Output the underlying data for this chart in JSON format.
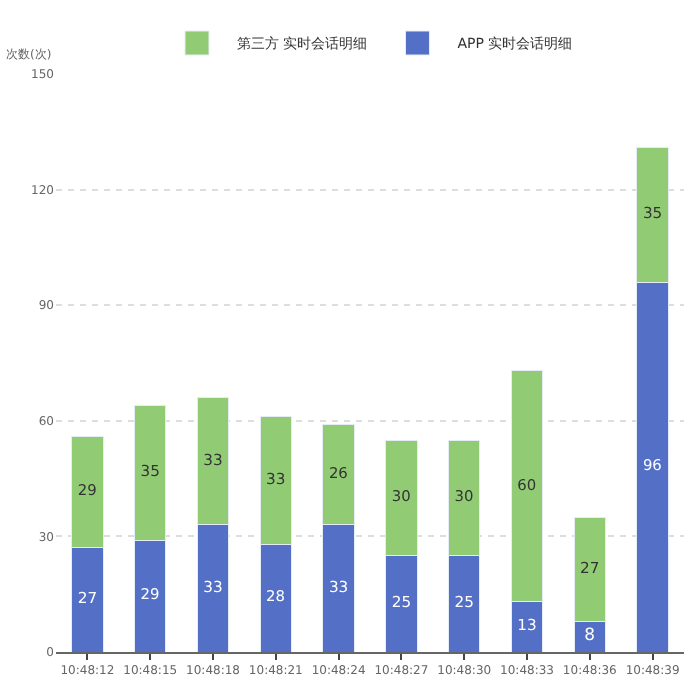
{
  "chart_data": {
    "type": "bar",
    "stacked": true,
    "ylabel": "次数(次)",
    "categories": [
      "10:48:12",
      "10:48:15",
      "10:48:18",
      "10:48:21",
      "10:48:24",
      "10:48:27",
      "10:48:30",
      "10:48:33",
      "10:48:36",
      "10:48:39"
    ],
    "series": [
      {
        "name": "APP 实时会话明细",
        "color": "#5470c6",
        "values": [
          27,
          29,
          33,
          28,
          33,
          25,
          25,
          13,
          8,
          96
        ]
      },
      {
        "name": "第三方 实时会话明细",
        "color": "#91cc75",
        "values": [
          29,
          35,
          33,
          33,
          26,
          30,
          30,
          60,
          27,
          35
        ]
      }
    ],
    "ylim": [
      0,
      150
    ],
    "yticks": [
      0,
      30,
      60,
      90,
      120,
      150
    ],
    "grid": "y",
    "legend": "top",
    "data_labels": true
  }
}
